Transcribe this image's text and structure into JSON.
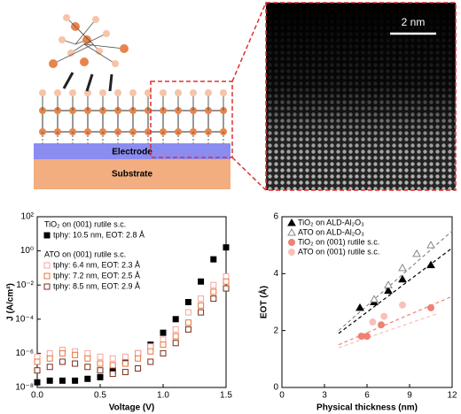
{
  "diagram": {
    "layers": [
      "Electrode",
      "Substrate"
    ],
    "scale_bar": "2 nm"
  },
  "chart_data": [
    {
      "type": "scatter",
      "log_y": true,
      "xlabel": "Voltage (V)",
      "ylabel": "J (A/cm²)",
      "xlim": [
        0,
        1.5
      ],
      "xticks": [
        {
          "value": 0,
          "label": "0.0"
        },
        0.5,
        {
          "value": 1,
          "label": "1.0"
        },
        1.5
      ],
      "ylim": [
        1e-08,
        100
      ],
      "yticks": [
        {
          "value": 1e-08,
          "label": "10⁻⁸"
        },
        {
          "value": 1e-06,
          "label": "10⁻⁶"
        },
        {
          "value": 0.0001,
          "label": "10⁻⁴"
        },
        {
          "value": 0.01,
          "label": "10⁻²"
        },
        {
          "value": 1,
          "label": "10⁰"
        },
        {
          "value": 100,
          "label": "10²"
        }
      ],
      "legend_headers": [
        "TiO₂ on (001) rutile s.c.",
        "ATO on (001) rutile s.c."
      ],
      "x": [
        0,
        0.1,
        0.2,
        0.3,
        0.4,
        0.5,
        0.6,
        0.7,
        0.8,
        0.9,
        1.0,
        1.1,
        1.2,
        1.3,
        1.4,
        1.5
      ],
      "series": [
        {
          "name": "tphy: 10.5 nm, EOT: 2.8 Å",
          "color": "#000000",
          "marker": "square",
          "values": [
            2e-08,
            2.5e-08,
            2.5e-08,
            2.5e-08,
            3.2e-08,
            4e-08,
            1e-07,
            3.2e-07,
            1e-06,
            3.2e-06,
            1.6e-05,
            0.0001,
            0.001,
            0.016,
            0.32,
            1.6
          ]
        },
        {
          "name": "tphy: 6.4 nm, EOT: 2.3 Å",
          "color": "#f4a6a0",
          "marker": "square-open",
          "values": [
            6.3e-07,
            1e-06,
            1.6e-06,
            1.3e-06,
            1e-06,
            6.3e-07,
            5e-07,
            6.3e-07,
            1e-06,
            2.5e-06,
            6.3e-06,
            2.5e-05,
            0.00025,
            0.0016,
            0.01,
            0.032
          ]
        },
        {
          "name": "tphy: 7.2 nm, EOT:  2.5 Å",
          "color": "#e8743b",
          "marker": "square-open",
          "values": [
            3.2e-07,
            5e-07,
            1e-06,
            8e-07,
            5e-07,
            2.5e-07,
            2e-07,
            2.5e-07,
            5e-07,
            1.3e-06,
            3.2e-06,
            1e-05,
            6.3e-05,
            0.00063,
            0.004,
            0.016
          ]
        },
        {
          "name": "tphy: 8.5 nm, EOT: 2.9 Å",
          "color": "#7a2e1a",
          "marker": "square-open",
          "values": [
            1e-07,
            1.6e-07,
            3.2e-07,
            2.5e-07,
            1.6e-07,
            1e-07,
            6.3e-08,
            8e-08,
            1.3e-07,
            3.2e-07,
            1e-06,
            4e-06,
            2.5e-05,
            0.00025,
            0.0016,
            0.0063
          ]
        }
      ]
    },
    {
      "type": "scatter",
      "xlabel": "Physical thickness (nm)",
      "ylabel": "EOT (Å)",
      "xlim": [
        0,
        12
      ],
      "xticks": [
        0,
        3,
        6,
        9,
        12
      ],
      "ylim": [
        0,
        6
      ],
      "yticks": [
        0,
        2,
        4,
        6
      ],
      "series": [
        {
          "name": "TiO₂ on ALD-Al₂O₃",
          "color": "#000000",
          "marker": "triangle",
          "x": [
            5.5,
            6.5,
            7.5,
            8.5,
            10.5
          ],
          "values": [
            2.8,
            3.0,
            3.4,
            3.8,
            4.3
          ]
        },
        {
          "name": "ATO on ALD-Al₂O₃",
          "color": "#888888",
          "marker": "triangle-open",
          "x": [
            6.5,
            7.5,
            8.5,
            9.5,
            10.5
          ],
          "values": [
            3.1,
            3.6,
            4.2,
            4.7,
            5.0
          ]
        },
        {
          "name": "TiO₂ on (001) rutile s.c.",
          "color": "#f08070",
          "marker": "circle",
          "x": [
            5.6,
            6,
            7,
            10.5
          ],
          "values": [
            1.8,
            1.8,
            2.2,
            2.8
          ]
        },
        {
          "name": "ATO on (001) rutile s.c.",
          "color": "#f8c0b8",
          "marker": "circle",
          "x": [
            6.4,
            7.2,
            8.5
          ],
          "values": [
            2.3,
            2.5,
            2.9
          ]
        }
      ],
      "fits": [
        {
          "color": "#000000",
          "x": [
            4,
            12
          ],
          "values": [
            1.9,
            4.9
          ]
        },
        {
          "color": "#888888",
          "x": [
            4,
            12
          ],
          "values": [
            2.0,
            5.5
          ]
        },
        {
          "color": "#f08070",
          "x": [
            4,
            12
          ],
          "values": [
            1.5,
            3.2
          ]
        },
        {
          "color": "#f8c0b8",
          "x": [
            4,
            11
          ],
          "values": [
            1.4,
            2.6
          ]
        }
      ]
    }
  ]
}
